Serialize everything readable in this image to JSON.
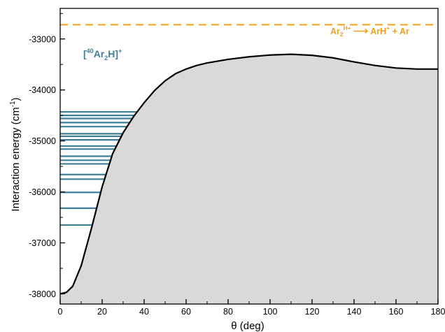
{
  "chart_data": {
    "type": "area",
    "xlabel": "θ (deg)",
    "ylabel": "Interaction energy (cm",
    "ylabel_sup": "-1",
    "ylabel_close": ")",
    "xlim": [
      0,
      180
    ],
    "ylim": [
      -38200,
      -32400
    ],
    "x_ticks": [
      0,
      20,
      40,
      60,
      80,
      100,
      120,
      140,
      160,
      180
    ],
    "y_ticks": [
      -38000,
      -37000,
      -36000,
      -35000,
      -34000,
      -33000
    ],
    "grid": false,
    "curve": {
      "x": [
        0,
        3,
        6,
        10,
        15,
        20,
        25,
        30,
        35,
        40,
        45,
        50,
        55,
        60,
        65,
        70,
        80,
        90,
        100,
        110,
        120,
        130,
        140,
        150,
        160,
        170,
        180
      ],
      "y": [
        -38000,
        -37970,
        -37850,
        -37450,
        -36700,
        -35900,
        -35250,
        -34840,
        -34520,
        -34250,
        -34010,
        -33820,
        -33680,
        -33590,
        -33520,
        -33470,
        -33400,
        -33350,
        -33315,
        -33300,
        -33320,
        -33370,
        -33450,
        -33520,
        -33570,
        -33590,
        -33590
      ],
      "fill_color": "#d9d9d9",
      "line_color": "#000000"
    },
    "dissociation": {
      "y": -32720,
      "color": "#f0a020",
      "style": "dashed",
      "label_left": "Ar",
      "label_left_sub": "2",
      "label_left_sup": "H+",
      "arrow": "⟶",
      "label_right": "ArH",
      "label_right_sup": "+",
      "label_tail": " + Ar"
    },
    "levels": {
      "color": "#3f7f9a",
      "energies": [
        -36650,
        -36320,
        -36010,
        -35750,
        -35660,
        -35450,
        -35380,
        -35300,
        -35160,
        -35100,
        -34980,
        -34910,
        -34860,
        -34720,
        -34640,
        -34560,
        -34500,
        -34430
      ]
    },
    "species_label": {
      "open": "[",
      "iso": "40",
      "element": "Ar",
      "sub": "2",
      "rest": "H]",
      "sup": "+",
      "color": "#3f7f9a"
    }
  }
}
